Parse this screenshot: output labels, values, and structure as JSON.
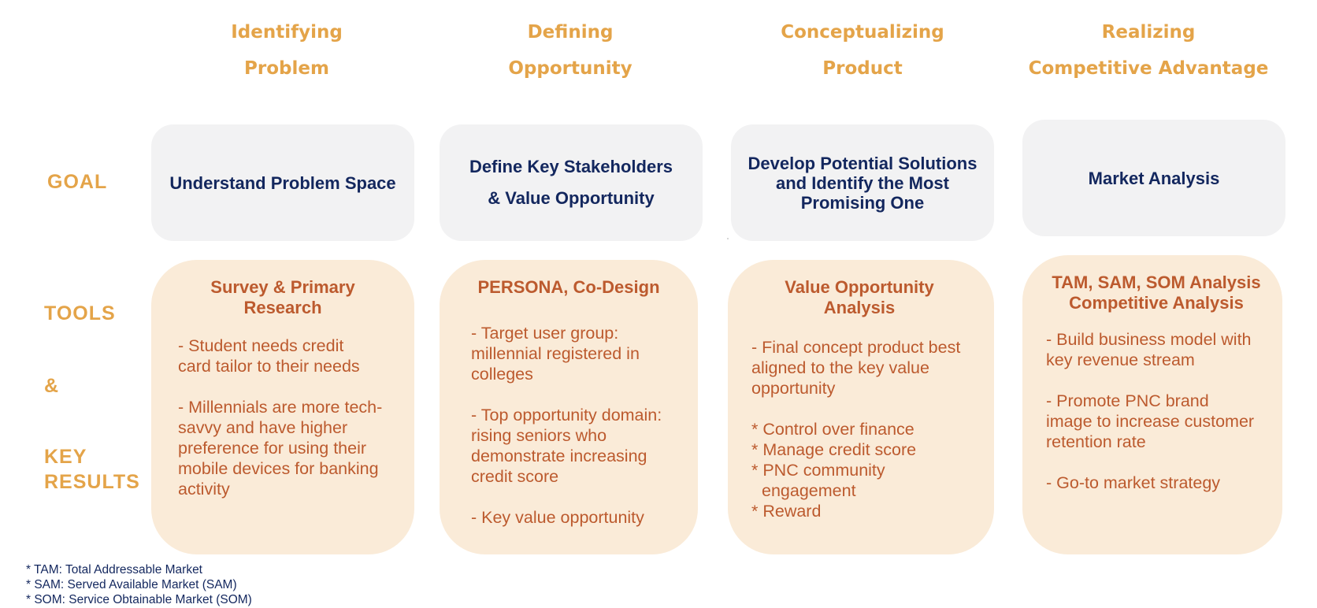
{
  "phases": [
    {
      "line1": "Identifying",
      "line2": "Problem"
    },
    {
      "line1": "Defining",
      "line2": "Opportunity"
    },
    {
      "line1": "Conceptualizing",
      "line2": "Product"
    },
    {
      "line1": "Realizing",
      "line2": "Competitive Advantage"
    }
  ],
  "row_labels": {
    "goal": "GOAL",
    "tools": "TOOLS",
    "amp": "&",
    "key": "KEY",
    "results": "RESULTS"
  },
  "goals": [
    {
      "lines": [
        "Understand Problem Space"
      ]
    },
    {
      "lines": [
        "Define Key Stakeholders",
        "& Value Opportunity"
      ]
    },
    {
      "lines": [
        "Develop Potential Solutions",
        "and Identify the Most",
        "Promising One"
      ]
    },
    {
      "lines": [
        "Market Analysis"
      ]
    }
  ],
  "tools": [
    {
      "title": [
        "Survey & Primary",
        "Research"
      ],
      "items": [
        "- Student needs credit card tailor to their needs",
        "- Millennials are more tech-savvy and have higher preference for using their mobile devices for banking activity"
      ]
    },
    {
      "title": [
        "PERSONA, Co-Design"
      ],
      "items": [
        "- Target user group: millennial registered in colleges",
        "- Top opportunity domain: rising seniors who demonstrate increasing credit score",
        "- Key value opportunity"
      ]
    },
    {
      "title": [
        "Value Opportunity",
        "Analysis"
      ],
      "items": [
        "- Final concept product best aligned to the key value opportunity"
      ],
      "bullets": [
        "* Control over finance",
        "* Manage credit score",
        "* PNC community",
        "engagement",
        "* Reward"
      ]
    },
    {
      "title": [
        "TAM, SAM, SOM Analysis",
        "Competitive Analysis"
      ],
      "items": [
        "- Build business model with key revenue stream",
        "- Promote PNC brand image to increase customer retention rate",
        "- Go-to market strategy"
      ]
    }
  ],
  "footnotes": [
    "* TAM: Total Addressable Market",
    "* SAM: Served Available Market (SAM)",
    "* SOM: Service Obtainable Market (SOM)"
  ],
  "colors": {
    "phase_header": "#E4A449",
    "goal_bg": "#F2F2F3",
    "goal_text": "#13275E",
    "tool_bg": "#FAEBD8",
    "tool_text": "#BC5A2E"
  }
}
